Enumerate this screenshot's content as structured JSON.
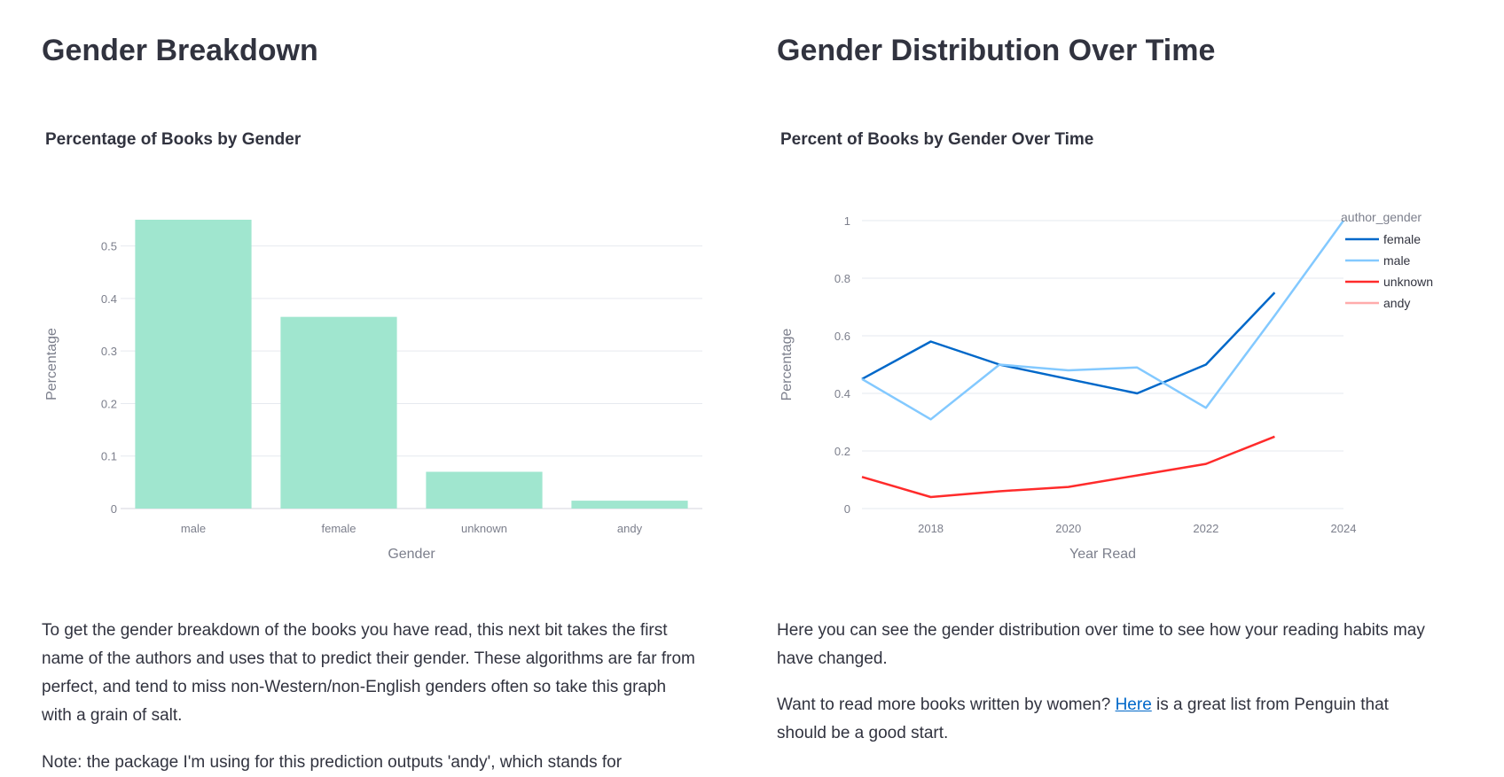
{
  "left": {
    "heading": "Gender Breakdown",
    "paragraph1": "To get the gender breakdown of the books you have read, this next bit takes the first name of the authors and uses that to predict their gender. These algorithms are far from perfect, and tend to miss non-Western/non-English genders often so take this graph with a grain of salt.",
    "paragraph2": "Note: the package I'm using for this prediction outputs 'andy', which stands for"
  },
  "right": {
    "heading": "Gender Distribution Over Time",
    "paragraph1": "Here you can see the gender distribution over time to see how your reading habits may have changed.",
    "paragraph2_before": "Want to read more books written by women? ",
    "paragraph2_link": "Here",
    "paragraph2_after": " is a great list from Penguin that should be a good start."
  },
  "chart_data": [
    {
      "type": "bar",
      "title": "Percentage of Books by Gender",
      "xlabel": "Gender",
      "ylabel": "Percentage",
      "categories": [
        "male",
        "female",
        "unknown",
        "andy"
      ],
      "values": [
        0.55,
        0.365,
        0.07,
        0.015
      ],
      "ylim": [
        0,
        0.55
      ],
      "yticks": [
        0,
        0.1,
        0.2,
        0.3,
        0.4,
        0.5
      ],
      "ytick_labels": [
        "0",
        "0.1",
        "0.2",
        "0.3",
        "0.4",
        "0.5"
      ],
      "grid": true,
      "color": "#a0e6cf"
    },
    {
      "type": "line",
      "title": "Percent of Books by Gender Over Time",
      "xlabel": "Year Read",
      "ylabel": "Percentage",
      "xlim": [
        2017,
        2024
      ],
      "ylim": [
        0,
        1
      ],
      "xticks": [
        2018,
        2020,
        2022,
        2024
      ],
      "xtick_labels": [
        "2018",
        "2020",
        "2022",
        "2024"
      ],
      "yticks": [
        0,
        0.2,
        0.4,
        0.6,
        0.8,
        1
      ],
      "ytick_labels": [
        "0",
        "0.2",
        "0.4",
        "0.6",
        "0.8",
        "1"
      ],
      "grid": true,
      "legend_title": "author_gender",
      "legend_position": "top-right",
      "series": [
        {
          "name": "female",
          "color": "#0068c9",
          "x": [
            2017,
            2018,
            2019,
            2020,
            2021,
            2022,
            2023
          ],
          "y": [
            0.45,
            0.58,
            0.5,
            0.45,
            0.4,
            0.5,
            0.75
          ]
        },
        {
          "name": "male",
          "color": "#83c9ff",
          "x": [
            2017,
            2018,
            2019,
            2020,
            2021,
            2022,
            2023,
            2024
          ],
          "y": [
            0.45,
            0.31,
            0.5,
            0.48,
            0.49,
            0.35,
            0.67,
            1.0
          ]
        },
        {
          "name": "unknown",
          "color": "#ff2b2b",
          "x": [
            2017,
            2018,
            2019,
            2020,
            2021,
            2022,
            2023
          ],
          "y": [
            0.11,
            0.04,
            0.06,
            0.075,
            0.115,
            0.155,
            0.25
          ]
        },
        {
          "name": "andy",
          "color": "#ffabab",
          "x": [],
          "y": []
        }
      ]
    }
  ]
}
